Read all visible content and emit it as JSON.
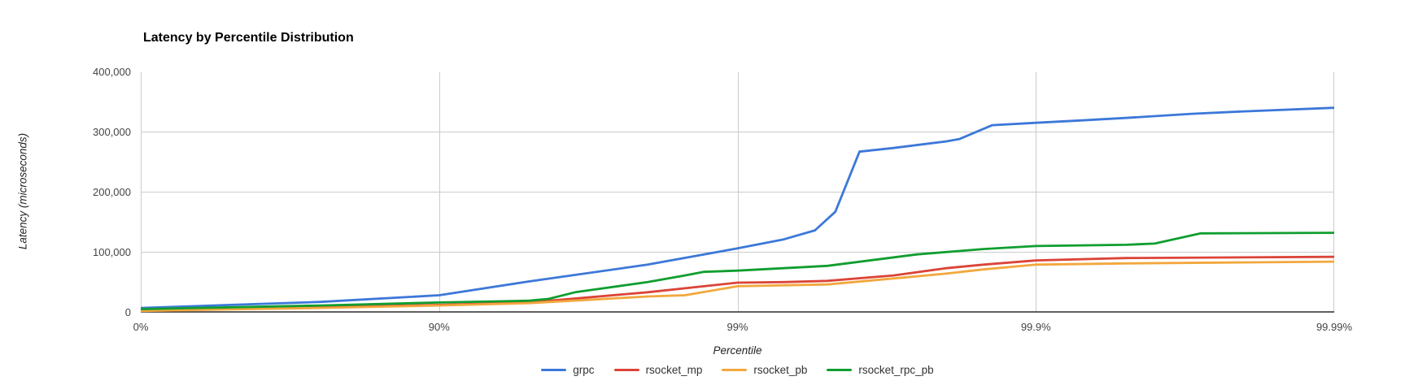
{
  "chart_data": {
    "type": "line",
    "title": "Latency by Percentile Distribution",
    "xlabel": "Percentile",
    "ylabel": "Latency (microseconds)",
    "x_scale": "log-percentile-nines",
    "x_tick_labels": [
      "0%",
      "90%",
      "99%",
      "99.9%",
      "99.99%"
    ],
    "x_tick_nines": [
      0,
      1,
      2,
      3,
      4
    ],
    "y_tick_labels": [
      "0",
      "100,000",
      "200,000",
      "300,000",
      "400,000"
    ],
    "y_tick_values": [
      0,
      100000,
      200000,
      300000,
      400000
    ],
    "ylim": [
      0,
      400000
    ],
    "grid": true,
    "legend_position": "bottom",
    "axis_line_color": "#333333",
    "gridline_color": "#cccccc",
    "series": [
      {
        "name": "grpc",
        "color": "#3C78D8",
        "points": [
          [
            0,
            8000
          ],
          [
            50,
            13000
          ],
          [
            75,
            18000
          ],
          [
            90,
            29000
          ],
          [
            95,
            52000
          ],
          [
            98,
            80000
          ],
          [
            99,
            107000
          ],
          [
            99.3,
            122000
          ],
          [
            99.45,
            137000
          ],
          [
            99.53,
            168000
          ],
          [
            99.61,
            268000
          ],
          [
            99.7,
            274000
          ],
          [
            99.8,
            285000
          ],
          [
            99.82,
            289000
          ],
          [
            99.86,
            312000
          ],
          [
            99.9,
            316000
          ],
          [
            99.93,
            320000
          ],
          [
            99.95,
            324000
          ],
          [
            99.97,
            331000
          ],
          [
            99.98,
            335000
          ],
          [
            99.99,
            341000
          ]
        ]
      },
      {
        "name": "rsocket_mp",
        "color": "#DB4437",
        "points": [
          [
            0,
            4000
          ],
          [
            50,
            6500
          ],
          [
            75,
            9000
          ],
          [
            90,
            13000
          ],
          [
            95,
            17000
          ],
          [
            98,
            34000
          ],
          [
            99,
            50000
          ],
          [
            99.3,
            51000
          ],
          [
            99.5,
            53000
          ],
          [
            99.7,
            62000
          ],
          [
            99.8,
            74000
          ],
          [
            99.85,
            80000
          ],
          [
            99.9,
            87000
          ],
          [
            99.95,
            91000
          ],
          [
            99.99,
            93000
          ]
        ]
      },
      {
        "name": "rsocket_pb",
        "color": "#F2A73D",
        "points": [
          [
            0,
            3000
          ],
          [
            50,
            5500
          ],
          [
            75,
            8000
          ],
          [
            90,
            12000
          ],
          [
            95,
            16000
          ],
          [
            97,
            22000
          ],
          [
            98,
            27000
          ],
          [
            98.5,
            29000
          ],
          [
            99,
            44000
          ],
          [
            99.5,
            47000
          ],
          [
            99.7,
            57000
          ],
          [
            99.8,
            65000
          ],
          [
            99.85,
            72000
          ],
          [
            99.9,
            80000
          ],
          [
            99.95,
            82000
          ],
          [
            99.99,
            85000
          ]
        ]
      },
      {
        "name": "rsocket_rpc_pb",
        "color": "#109E2F",
        "points": [
          [
            0,
            6000
          ],
          [
            50,
            9000
          ],
          [
            75,
            12000
          ],
          [
            90,
            17000
          ],
          [
            95,
            20000
          ],
          [
            95.7,
            23000
          ],
          [
            96.5,
            34000
          ],
          [
            98,
            51000
          ],
          [
            98.5,
            62000
          ],
          [
            98.7,
            68000
          ],
          [
            99,
            70000
          ],
          [
            99.5,
            78000
          ],
          [
            99.75,
            97000
          ],
          [
            99.85,
            106000
          ],
          [
            99.9,
            111000
          ],
          [
            99.95,
            113000
          ],
          [
            99.96,
            115000
          ],
          [
            99.972,
            132000
          ],
          [
            99.99,
            133000
          ]
        ]
      }
    ]
  }
}
